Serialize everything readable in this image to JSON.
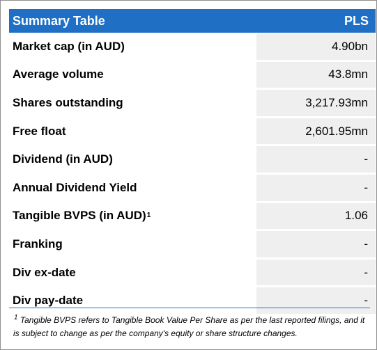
{
  "table": {
    "title": "Summary Table",
    "ticker": "PLS",
    "rows": [
      {
        "label": "Market cap (in AUD)",
        "sup": "",
        "value": "4.90bn"
      },
      {
        "label": "Average volume",
        "sup": "",
        "value": "43.8mn"
      },
      {
        "label": "Shares outstanding",
        "sup": "",
        "value": "3,217.93mn"
      },
      {
        "label": "Free float",
        "sup": "",
        "value": "2,601.95mn"
      },
      {
        "label": "Dividend (in AUD)",
        "sup": "",
        "value": "-"
      },
      {
        "label": "Annual Dividend Yield",
        "sup": "",
        "value": "-"
      },
      {
        "label": "Tangible BVPS (in AUD)",
        "sup": "1",
        "value": "1.06"
      },
      {
        "label": "Franking",
        "sup": "",
        "value": "-"
      },
      {
        "label": "Div ex-date",
        "sup": "",
        "value": "-"
      },
      {
        "label": "Div pay-date",
        "sup": "",
        "value": "-"
      }
    ]
  },
  "footnote": {
    "marker": "1",
    "text": "Tangible BVPS refers to Tangible Book Value Per Share as per the last reported filings, and it is subject to change as per the company's equity or share structure changes."
  },
  "colors": {
    "header_background": "#1f6fc4",
    "value_cell_background": "#efefef"
  }
}
